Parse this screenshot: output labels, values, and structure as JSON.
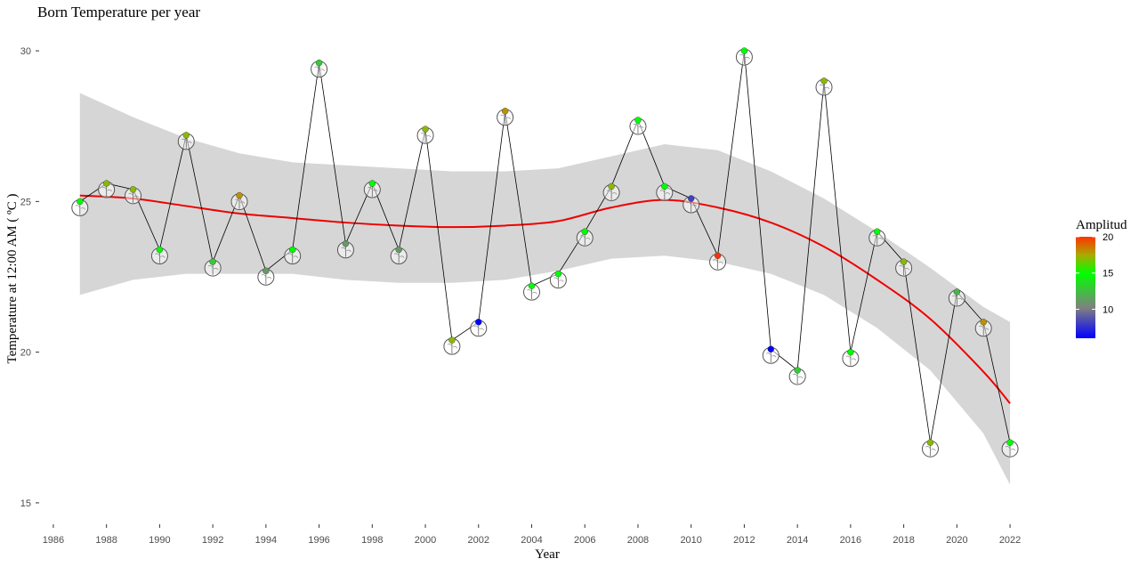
{
  "chart_data": {
    "type": "line",
    "title": "Born Temperature per year",
    "xlabel": "Year",
    "ylabel": "Temperature at 12:00 AM ( ºC )",
    "xlim": [
      1985.5,
      2022.5
    ],
    "ylim": [
      14.2,
      30.8
    ],
    "x_ticks": [
      1986,
      1988,
      1990,
      1992,
      1994,
      1996,
      1998,
      2000,
      2002,
      2004,
      2006,
      2008,
      2010,
      2012,
      2014,
      2016,
      2018,
      2020,
      2022
    ],
    "y_ticks": [
      15,
      20,
      25,
      30
    ],
    "grid": false,
    "legend": {
      "title": "Amplitud",
      "position": "right",
      "min": 6,
      "max": 20,
      "ticks": [
        10,
        15,
        20
      ],
      "colors": [
        "#0000ff",
        "#808080",
        "#00ff00",
        "#ff3300"
      ]
    },
    "series": [
      {
        "x": [
          1987,
          1988,
          1989,
          1990,
          1991,
          1992,
          1993,
          1994,
          1995,
          1996,
          1997,
          1998,
          1999,
          2000,
          2001,
          2002,
          2003,
          2004,
          2005,
          2006,
          2007,
          2008,
          2009,
          2010,
          2011,
          2012,
          2013,
          2014,
          2015,
          2016,
          2017,
          2018,
          2019,
          2020,
          2021,
          2022
        ],
        "y": [
          25.0,
          25.6,
          25.4,
          23.4,
          27.2,
          23.0,
          25.2,
          22.7,
          23.4,
          29.6,
          23.6,
          25.6,
          23.4,
          27.4,
          20.4,
          21.0,
          28.0,
          22.2,
          22.6,
          24.0,
          25.5,
          27.7,
          25.5,
          25.1,
          23.2,
          30.0,
          20.1,
          19.4,
          29.0,
          20.0,
          24.0,
          23.0,
          17.0,
          22.0,
          21.0,
          17.0
        ],
        "amplitude": [
          15,
          17,
          17,
          15,
          17,
          13,
          18,
          11,
          15,
          13,
          11,
          15,
          11,
          17,
          17,
          6,
          18,
          15,
          15,
          15,
          17,
          15,
          15,
          8,
          20,
          15,
          6,
          13,
          17,
          15,
          15,
          17,
          17,
          12,
          18,
          15
        ]
      },
      {
        "type": "smooth",
        "x": [
          1987,
          1989,
          1991,
          1993,
          1995,
          1997,
          1999,
          2001,
          2003,
          2005,
          2007,
          2009,
          2011,
          2013,
          2015,
          2017,
          2019,
          2021,
          2022
        ],
        "y": [
          25.2,
          25.1,
          24.85,
          24.6,
          24.45,
          24.3,
          24.2,
          24.15,
          24.2,
          24.35,
          24.8,
          25.05,
          24.8,
          24.3,
          23.5,
          22.4,
          21.1,
          19.35,
          18.3
        ],
        "ci_low": [
          21.9,
          22.4,
          22.6,
          22.6,
          22.6,
          22.4,
          22.3,
          22.3,
          22.4,
          22.7,
          23.1,
          23.2,
          23.0,
          22.6,
          21.9,
          20.8,
          19.4,
          17.3,
          15.6
        ],
        "ci_high": [
          28.6,
          27.8,
          27.1,
          26.6,
          26.3,
          26.2,
          26.1,
          26.0,
          26.0,
          26.1,
          26.5,
          26.9,
          26.7,
          26.0,
          25.1,
          24.0,
          22.8,
          21.5,
          21.0
        ]
      }
    ]
  }
}
